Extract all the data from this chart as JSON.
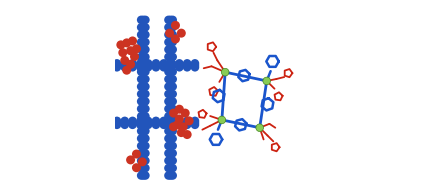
{
  "background_color": "#ffffff",
  "left_panel": {
    "blue_color": "#2255bb",
    "red_color": "#cc3322",
    "sphere_r": 0.022
  },
  "right_panel": {
    "metal_color": "#88cc55",
    "blue_color": "#1a55cc",
    "red_color": "#cc2211",
    "metal_r": 0.013
  }
}
